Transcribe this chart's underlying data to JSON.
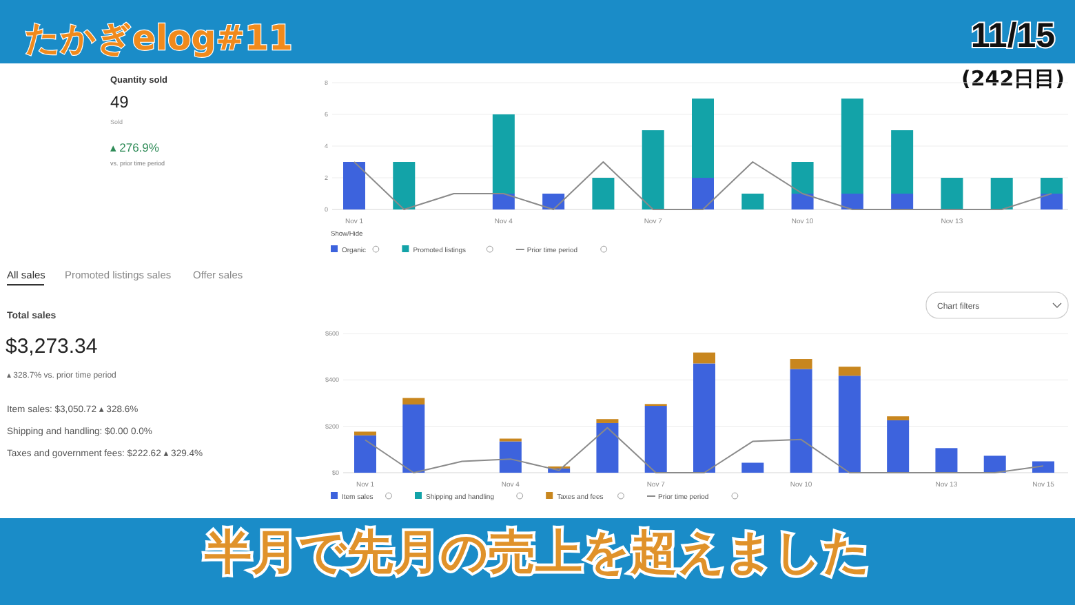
{
  "chart_data": [
    {
      "type": "other",
      "title": "たかぎelog#11",
      "annotations": [
        "11/15",
        "(242日目)",
        "半月で先月の売上を超えました"
      ]
    },
    {
      "type": "other",
      "title": "Quantity sold",
      "annotations": [
        "49",
        "Sold",
        "▴ 276.9%",
        "vs. prior time period"
      ]
    },
    {
      "type": "bar",
      "stacked": true,
      "categories": [
        "Nov 1",
        null,
        null,
        "Nov 4",
        null,
        null,
        "Nov 7",
        null,
        null,
        "Nov 10",
        null,
        null,
        "Nov 13",
        null,
        null
      ],
      "ylim": [
        0,
        8
      ],
      "yticks": [
        0,
        2,
        4,
        6,
        8
      ],
      "grid": "y",
      "legend": "bottom",
      "annotations": [
        "Show/Hide"
      ],
      "series": [
        {
          "name": "Organic",
          "color": "#3d63dd",
          "values": [
            3,
            0,
            0,
            1,
            1,
            0,
            0,
            2,
            0,
            1,
            1,
            1,
            0,
            0,
            1
          ]
        },
        {
          "name": "Promoted listings",
          "color": "#13a3a8",
          "values": [
            0,
            3,
            0,
            5,
            0,
            2,
            5,
            5,
            1,
            2,
            6,
            4,
            2,
            2,
            1
          ]
        },
        {
          "name": "Prior time period",
          "type": "line",
          "color": "#8a8a8a",
          "values": [
            3,
            0,
            1,
            1,
            0,
            3,
            0,
            0,
            3,
            1,
            0,
            0,
            0,
            0,
            1
          ]
        }
      ]
    },
    {
      "type": "other",
      "title": "Total sales",
      "annotations": [
        "All sales",
        "Promoted listings sales",
        "Offer sales",
        "$3,273.34",
        "▴ 328.7% vs. prior time period",
        "Item sales: $3,050.72 ▴ 328.6%",
        "Shipping and handling: $0.00 0.0%",
        "Taxes and government fees: $222.62 ▴ 329.4%"
      ]
    },
    {
      "type": "bar",
      "stacked": true,
      "categories": [
        "Nov 1",
        null,
        null,
        "Nov 4",
        null,
        null,
        "Nov 7",
        null,
        null,
        "Nov 10",
        null,
        null,
        "Nov 13",
        null,
        "Nov 15"
      ],
      "ylim": [
        0,
        600
      ],
      "yticks": [
        {
          "value": 0,
          "label": "$0"
        },
        {
          "value": 200,
          "label": "$200"
        },
        {
          "value": 400,
          "label": "$400"
        },
        {
          "value": 600,
          "label": "$600"
        }
      ],
      "grid": "y",
      "legend": "bottom",
      "annotations": [
        "Chart filters"
      ],
      "series": [
        {
          "name": "Item sales",
          "color": "#3d63dd",
          "values": [
            161,
            294,
            0,
            135,
            18,
            214,
            288,
            471,
            43,
            447,
            418,
            226,
            106,
            73,
            49
          ]
        },
        {
          "name": "Shipping and handling",
          "color": "#13a3a8",
          "values": [
            0,
            0,
            0,
            0,
            0,
            0,
            0,
            0,
            0,
            0,
            0,
            0,
            0,
            0,
            0
          ]
        },
        {
          "name": "Taxes and fees",
          "color": "#c8861e",
          "values": [
            16,
            28,
            0,
            12,
            9,
            17,
            8,
            47,
            0,
            43,
            39,
            17,
            0,
            0,
            0
          ]
        },
        {
          "name": "Prior time period",
          "type": "line",
          "color": "#8a8a8a",
          "values": [
            141,
            0,
            49,
            59,
            10,
            194,
            0,
            0,
            135,
            143,
            0,
            0,
            0,
            0,
            29
          ]
        }
      ]
    }
  ]
}
